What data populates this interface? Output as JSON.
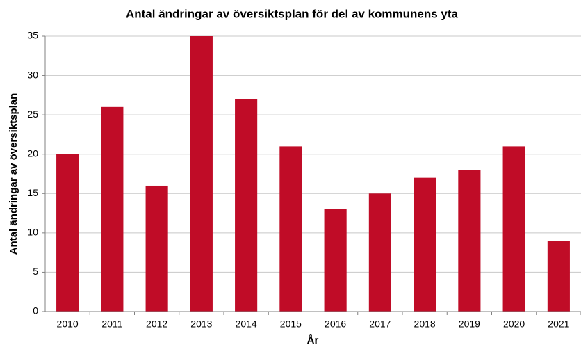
{
  "chart_data": {
    "type": "bar",
    "title": "Antal ändringar av översiktsplan för del av kommunens yta",
    "x_label": "År",
    "y_label": "Antal ändringar av översiktsplan",
    "categories": [
      "2010",
      "2011",
      "2012",
      "2013",
      "2014",
      "2015",
      "2016",
      "2017",
      "2018",
      "2019",
      "2020",
      "2021"
    ],
    "values": [
      20,
      26,
      16,
      35,
      27,
      21,
      13,
      15,
      17,
      18,
      21,
      9
    ],
    "color": "#c00c27",
    "ylim": [
      0,
      35
    ],
    "yticks": [
      0,
      5,
      10,
      15,
      20,
      25,
      30,
      35
    ],
    "grid": true
  }
}
